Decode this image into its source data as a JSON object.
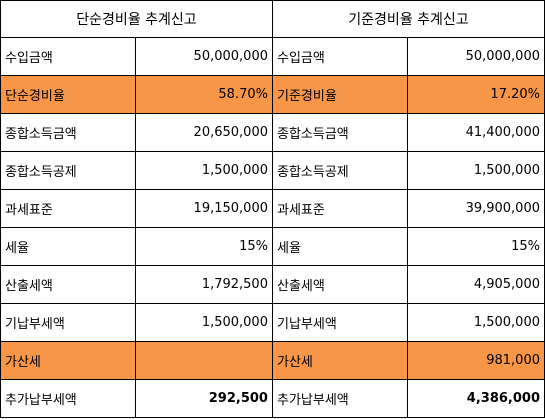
{
  "left": {
    "title": "단순경비율 추계신고",
    "rows": [
      {
        "label": "수입금액",
        "value": "50,000,000"
      },
      {
        "label": "단순경비율",
        "value": "58.70%"
      },
      {
        "label": "종합소득금액",
        "value": "20,650,000"
      },
      {
        "label": "종합소득공제",
        "value": "1,500,000"
      },
      {
        "label": "과세표준",
        "value": "19,150,000"
      },
      {
        "label": "세율",
        "value": "15%"
      },
      {
        "label": "산출세액",
        "value": "1,792,500"
      },
      {
        "label": "기납부세액",
        "value": "1,500,000"
      },
      {
        "label": "가산세",
        "value": ""
      },
      {
        "label": "추가납부세액",
        "value": "292,500"
      }
    ]
  },
  "right": {
    "title": "기준경비율 추계신고",
    "rows": [
      {
        "label": "수입금액",
        "value": "50,000,000"
      },
      {
        "label": "기준경비율",
        "value": "17.20%"
      },
      {
        "label": "종합소득금액",
        "value": "41,400,000"
      },
      {
        "label": "종합소득공제",
        "value": "1,500,000"
      },
      {
        "label": "과세표준",
        "value": "39,900,000"
      },
      {
        "label": "세율",
        "value": "15%"
      },
      {
        "label": "산출세액",
        "value": "4,905,000"
      },
      {
        "label": "기납부세액",
        "value": "1,500,000"
      },
      {
        "label": "가산세",
        "value": "981,000"
      },
      {
        "label": "추가납부세액",
        "value": "4,386,000"
      }
    ]
  },
  "colors": {
    "highlight": "#f79646",
    "border": "#000000"
  }
}
